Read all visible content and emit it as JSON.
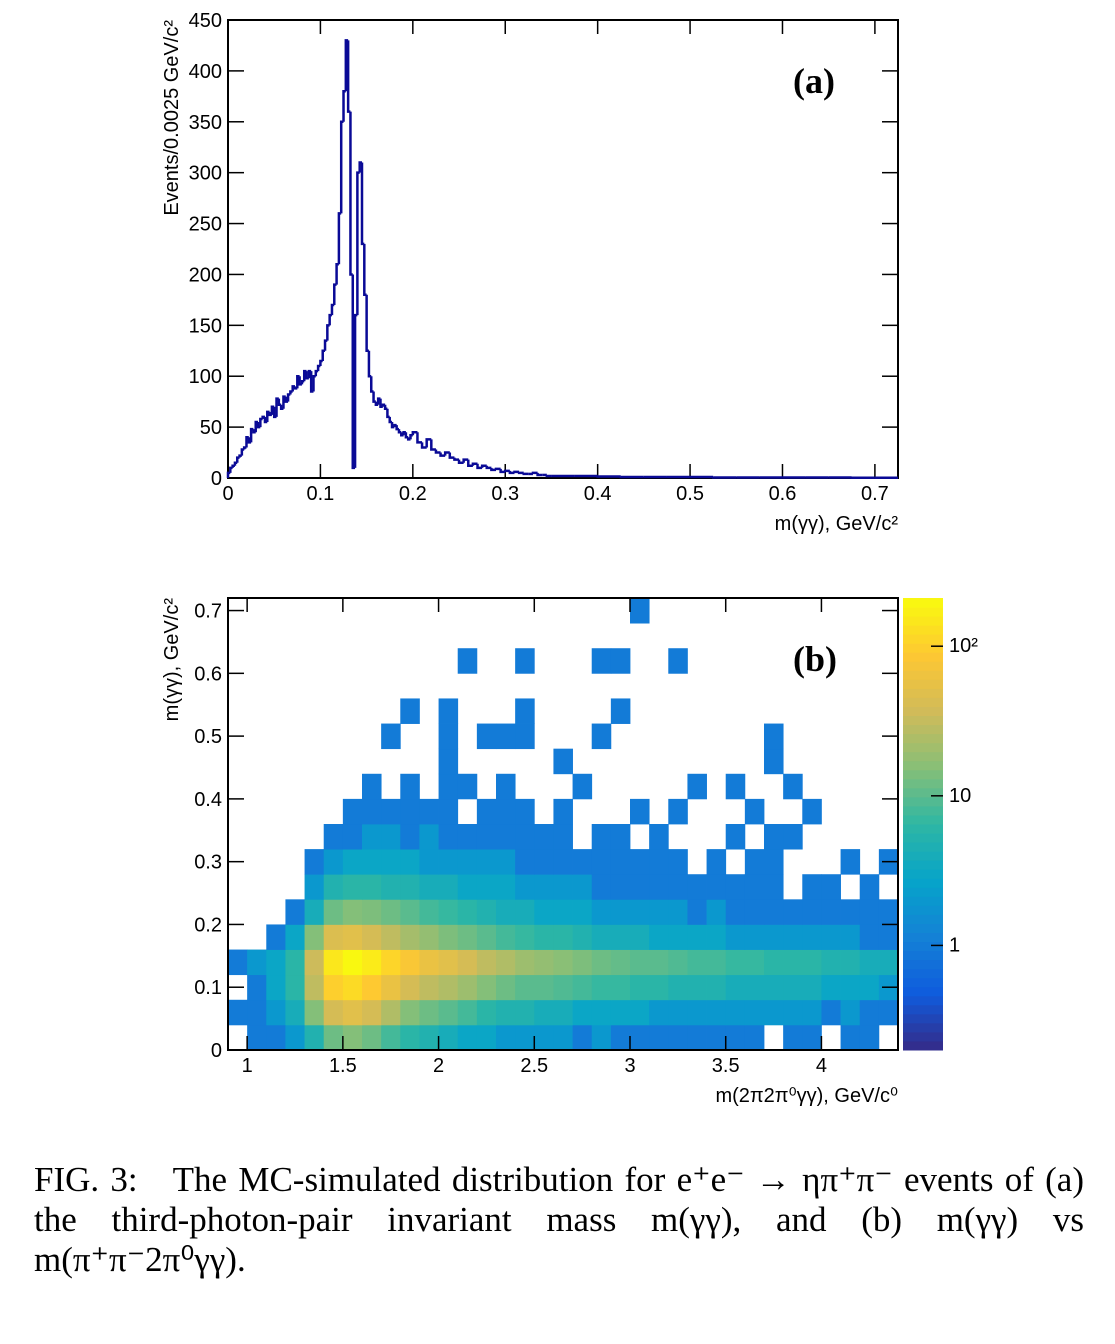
{
  "caption": "FIG. 3: The MC-simulated distribution for e⁺e⁻ → ηπ⁺π⁻ events of (a) the third-photon-pair invariant mass m(γγ), and (b) m(γγ) vs m(π⁺π⁻2π⁰γγ).",
  "chart_data": [
    {
      "type": "histogram",
      "annotation": "(a)",
      "x_label": "m(γγ), GeV/c²",
      "y_label": "Events/0.0025 GeV/c²",
      "color": "#0a0a96",
      "bins": [
        0,
        0.0025,
        0.005,
        0.0075,
        0.01,
        0.0125,
        0.015,
        0.0175,
        0.02,
        0.0225,
        0.025,
        0.0275,
        0.03,
        0.0325,
        0.035,
        0.0375,
        0.04,
        0.0425,
        0.045,
        0.0475,
        0.05,
        0.0525,
        0.055,
        0.0575,
        0.06,
        0.0625,
        0.065,
        0.0675,
        0.07,
        0.0725,
        0.075,
        0.0775,
        0.08,
        0.0825,
        0.085,
        0.0875,
        0.09,
        0.0925,
        0.095,
        0.0975,
        0.1,
        0.1025,
        0.105,
        0.1075,
        0.11,
        0.1125,
        0.115,
        0.1175,
        0.12,
        0.1225,
        0.125,
        0.1275,
        0.13,
        0.1325,
        0.135,
        0.1375,
        0.14,
        0.1425,
        0.145,
        0.1475,
        0.15,
        0.1525,
        0.155,
        0.1575,
        0.16,
        0.1625,
        0.165,
        0.1675,
        0.17,
        0.1725,
        0.175,
        0.1775,
        0.18,
        0.1825,
        0.185,
        0.1875,
        0.19,
        0.1925,
        0.195,
        0.1975,
        0.2,
        0.205,
        0.21,
        0.215,
        0.22,
        0.225,
        0.23,
        0.235,
        0.24,
        0.245,
        0.25,
        0.255,
        0.26,
        0.265,
        0.27,
        0.275,
        0.28,
        0.285,
        0.29,
        0.295,
        0.3,
        0.305,
        0.31,
        0.315,
        0.32,
        0.325,
        0.33,
        0.335,
        0.34,
        0.345,
        0.35,
        0.375,
        0.4,
        0.425,
        0.45,
        0.475,
        0.5,
        0.525,
        0.55,
        0.575,
        0.6,
        0.625,
        0.65,
        0.675,
        0.7,
        0.725
      ],
      "values": [
        5,
        10,
        12,
        15,
        20,
        22,
        28,
        30,
        40,
        35,
        48,
        45,
        55,
        50,
        58,
        60,
        55,
        65,
        62,
        70,
        60,
        78,
        72,
        68,
        80,
        75,
        82,
        85,
        90,
        88,
        100,
        92,
        95,
        105,
        98,
        105,
        85,
        100,
        105,
        110,
        115,
        125,
        135,
        150,
        160,
        170,
        190,
        210,
        260,
        350,
        380,
        430,
        360,
        200,
        10,
        160,
        300,
        310,
        230,
        180,
        125,
        100,
        85,
        75,
        72,
        78,
        70,
        72,
        68,
        60,
        55,
        50,
        52,
        48,
        45,
        42,
        45,
        40,
        38,
        42,
        45,
        35,
        30,
        38,
        28,
        25,
        22,
        25,
        20,
        18,
        15,
        18,
        12,
        14,
        10,
        12,
        10,
        8,
        9,
        6,
        7,
        5,
        6,
        5,
        4,
        4,
        5,
        3,
        3,
        2,
        2,
        2,
        1.5,
        1,
        1,
        1,
        1,
        0.5,
        0.5,
        0.5,
        0.5,
        0.5,
        0.5,
        0.3,
        0.3
      ],
      "xlim": [
        0,
        0.725
      ],
      "xticks": [
        0,
        0.1,
        0.2,
        0.3,
        0.4,
        0.5,
        0.6,
        0.7
      ],
      "ylim": [
        0,
        450
      ],
      "yticks": [
        0,
        50,
        100,
        150,
        200,
        250,
        300,
        350,
        400,
        450
      ]
    },
    {
      "type": "heatmap",
      "annotation": "(b)",
      "x_label": "m(2π2π⁰γγ), GeV/c⁰",
      "y_label": "m(γγ), GeV/c²",
      "x_bins": [
        0.9,
        1.0,
        1.1,
        1.2,
        1.3,
        1.4,
        1.5,
        1.6,
        1.7,
        1.8,
        1.9,
        2.0,
        2.1,
        2.2,
        2.3,
        2.4,
        2.5,
        2.6,
        2.7,
        2.8,
        2.9,
        3.0,
        3.1,
        3.2,
        3.3,
        3.4,
        3.5,
        3.6,
        3.7,
        3.8,
        3.9,
        4.0,
        4.1,
        4.2,
        4.3,
        4.4
      ],
      "y_bins": [
        0,
        0.04,
        0.08,
        0.12,
        0.16,
        0.2,
        0.24,
        0.28,
        0.32,
        0.36,
        0.4,
        0.44,
        0.48,
        0.52,
        0.56,
        0.6,
        0.64,
        0.68,
        0.72
      ],
      "z": [
        [
          0,
          1,
          1,
          2,
          5,
          12,
          15,
          12,
          8,
          6,
          5,
          4,
          3,
          3,
          2,
          2,
          2,
          2,
          1,
          2,
          1,
          1,
          1,
          1,
          1,
          1,
          1,
          1,
          0,
          1,
          1,
          0,
          1,
          1,
          0
        ],
        [
          1,
          1,
          2,
          4,
          15,
          40,
          50,
          40,
          25,
          15,
          12,
          10,
          8,
          6,
          5,
          5,
          4,
          4,
          3,
          3,
          3,
          3,
          2,
          2,
          2,
          2,
          2,
          2,
          2,
          2,
          2,
          1,
          2,
          1,
          1
        ],
        [
          0,
          1,
          3,
          6,
          30,
          100,
          120,
          90,
          60,
          40,
          30,
          25,
          20,
          15,
          12,
          10,
          10,
          9,
          8,
          7,
          7,
          6,
          6,
          5,
          5,
          5,
          4,
          4,
          4,
          4,
          4,
          3,
          3,
          3,
          2
        ],
        [
          1,
          2,
          3,
          6,
          35,
          150,
          200,
          160,
          110,
          80,
          60,
          50,
          40,
          30,
          25,
          20,
          18,
          16,
          14,
          12,
          11,
          10,
          10,
          9,
          8,
          8,
          7,
          7,
          6,
          6,
          6,
          5,
          5,
          4,
          4
        ],
        [
          0,
          0,
          1,
          3,
          15,
          45,
          50,
          40,
          30,
          22,
          18,
          14,
          12,
          10,
          8,
          7,
          6,
          6,
          5,
          4,
          4,
          4,
          3,
          3,
          3,
          3,
          2,
          2,
          2,
          2,
          2,
          2,
          2,
          1,
          1
        ],
        [
          0,
          0,
          0,
          1,
          4,
          12,
          15,
          14,
          12,
          10,
          8,
          7,
          6,
          5,
          4,
          4,
          3,
          3,
          3,
          2,
          2,
          2,
          2,
          2,
          1,
          2,
          1,
          1,
          1,
          1,
          1,
          1,
          1,
          1,
          1
        ],
        [
          0,
          0,
          0,
          0,
          2,
          5,
          6,
          6,
          5,
          5,
          4,
          4,
          3,
          3,
          3,
          2,
          2,
          2,
          2,
          1,
          1,
          1,
          1,
          1,
          1,
          1,
          1,
          1,
          1,
          0,
          1,
          1,
          0,
          1,
          0
        ],
        [
          0,
          0,
          0,
          0,
          1,
          2,
          3,
          3,
          3,
          3,
          2,
          2,
          2,
          2,
          2,
          1,
          1,
          1,
          1,
          1,
          1,
          1,
          1,
          1,
          0,
          1,
          0,
          1,
          1,
          0,
          0,
          0,
          1,
          0,
          1
        ],
        [
          0,
          0,
          0,
          0,
          0,
          1,
          1,
          2,
          2,
          1,
          2,
          1,
          1,
          1,
          1,
          1,
          1,
          1,
          0,
          1,
          1,
          0,
          1,
          0,
          0,
          0,
          1,
          0,
          1,
          1,
          0,
          0,
          0,
          0,
          0
        ],
        [
          0,
          0,
          0,
          0,
          0,
          0,
          1,
          1,
          1,
          1,
          1,
          1,
          0,
          1,
          1,
          1,
          0,
          1,
          0,
          0,
          0,
          1,
          0,
          1,
          0,
          0,
          0,
          1,
          0,
          0,
          1,
          0,
          0,
          0,
          0
        ],
        [
          0,
          0,
          0,
          0,
          0,
          0,
          0,
          1,
          0,
          1,
          0,
          1,
          1,
          0,
          1,
          0,
          0,
          0,
          1,
          0,
          0,
          0,
          0,
          0,
          1,
          0,
          1,
          0,
          0,
          1,
          0,
          0,
          0,
          0,
          0
        ],
        [
          0,
          0,
          0,
          0,
          0,
          0,
          0,
          0,
          0,
          0,
          0,
          1,
          0,
          0,
          0,
          0,
          0,
          1,
          0,
          0,
          0,
          0,
          0,
          0,
          0,
          0,
          0,
          0,
          1,
          0,
          0,
          0,
          0,
          0,
          0
        ],
        [
          0,
          0,
          0,
          0,
          0,
          0,
          0,
          0,
          1,
          0,
          0,
          1,
          0,
          1,
          1,
          1,
          0,
          0,
          0,
          1,
          0,
          0,
          0,
          0,
          0,
          0,
          0,
          0,
          1,
          0,
          0,
          0,
          0,
          0,
          0
        ],
        [
          0,
          0,
          0,
          0,
          0,
          0,
          0,
          0,
          0,
          1,
          0,
          1,
          0,
          0,
          0,
          1,
          0,
          0,
          0,
          0,
          1,
          0,
          0,
          0,
          0,
          0,
          0,
          0,
          0,
          0,
          0,
          0,
          0,
          0,
          0
        ],
        [
          0,
          0,
          0,
          0,
          0,
          0,
          0,
          0,
          0,
          0,
          0,
          0,
          0,
          0,
          0,
          0,
          0,
          0,
          0,
          0,
          0,
          0,
          0,
          0,
          0,
          0,
          0,
          0,
          0,
          0,
          0,
          0,
          0,
          0,
          0
        ],
        [
          0,
          0,
          0,
          0,
          0,
          0,
          0,
          0,
          0,
          0,
          0,
          0,
          1,
          0,
          0,
          1,
          0,
          0,
          0,
          1,
          1,
          0,
          0,
          1,
          0,
          0,
          0,
          0,
          0,
          0,
          0,
          0,
          0,
          0,
          0
        ],
        [
          0,
          0,
          0,
          0,
          0,
          0,
          0,
          0,
          0,
          0,
          0,
          0,
          0,
          0,
          0,
          0,
          0,
          0,
          0,
          0,
          0,
          0,
          0,
          0,
          0,
          0,
          0,
          0,
          0,
          0,
          0,
          0,
          0,
          0,
          0
        ],
        [
          0,
          0,
          0,
          0,
          0,
          0,
          0,
          0,
          0,
          0,
          0,
          0,
          0,
          0,
          0,
          0,
          0,
          0,
          0,
          0,
          0,
          1,
          0,
          0,
          0,
          0,
          0,
          0,
          0,
          0,
          0,
          0,
          0,
          0,
          0
        ]
      ],
      "xlim": [
        0.9,
        4.4
      ],
      "xticks": [
        1,
        1.5,
        2,
        2.5,
        3,
        3.5,
        4
      ],
      "ylim": [
        0,
        0.72
      ],
      "yticks": [
        0,
        0.1,
        0.2,
        0.3,
        0.4,
        0.5,
        0.6,
        0.7
      ],
      "zlim": [
        0.2,
        210
      ],
      "zlog": true,
      "zticks": [
        1,
        10,
        {
          "value": 100,
          "label": "10²"
        }
      ],
      "palette": [
        "#352a87",
        "#0f5cdd",
        "#1481d6",
        "#06a4ca",
        "#2eb7a4",
        "#87bf77",
        "#d1bb59",
        "#fec832",
        "#f9fb0e"
      ]
    }
  ]
}
